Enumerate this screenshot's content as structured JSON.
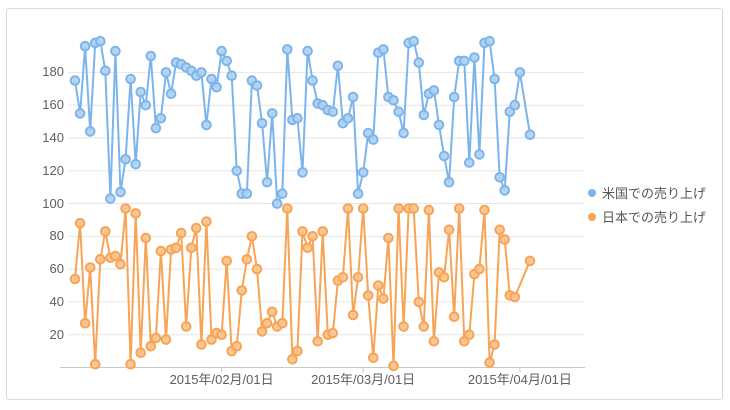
{
  "chart_data": {
    "type": "line",
    "title": "",
    "xlabel": "",
    "ylabel": "",
    "grid": "horizontal-only",
    "legend_position": "right-middle",
    "ylim": [
      0,
      205
    ],
    "y_ticks": [
      20,
      40,
      60,
      80,
      100,
      120,
      140,
      160,
      180
    ],
    "x_tick_labels": [
      "2015年/02月/01日",
      "2015年/03月/01日",
      "2015年/04月/01日"
    ],
    "x_tick_indices": [
      29,
      57,
      88
    ],
    "colors": {
      "grid": "#e6e6e6",
      "axis": "#c8c8c8",
      "tick": "#c8c8c8",
      "axis_text": "#606060",
      "legend_text": "#555555",
      "background": "#ffffff",
      "frame_border": "#d9d9d9"
    },
    "series": [
      {
        "name": "米国での売り上げ",
        "color": "#7cb5ec",
        "marker_fill": "#b3d2f0",
        "values": [
          175,
          155,
          196,
          144,
          198,
          199,
          181,
          103,
          193,
          107,
          127,
          176,
          124,
          168,
          160,
          190,
          146,
          152,
          180,
          167,
          186,
          185,
          183,
          181,
          178,
          180,
          148,
          176,
          171,
          193,
          187,
          178,
          120,
          106,
          106,
          175,
          172,
          149,
          113,
          155,
          100,
          106,
          194,
          151,
          152,
          119,
          193,
          175,
          161,
          160,
          157,
          156,
          184,
          149,
          152,
          165,
          106,
          119,
          143,
          139,
          192,
          194,
          165,
          163,
          156,
          143,
          198,
          199,
          186,
          154,
          167,
          169,
          148,
          129,
          113,
          165,
          187,
          187,
          125,
          189,
          130,
          198,
          199,
          176,
          116,
          108,
          156,
          160,
          180,
          null,
          142
        ]
      },
      {
        "name": "日本での売り上げ",
        "color": "#f7a456",
        "marker_fill": "#fac48e",
        "values": [
          54,
          88,
          27,
          61,
          2,
          66,
          83,
          67,
          68,
          63,
          97,
          2,
          94,
          9,
          79,
          13,
          18,
          71,
          17,
          72,
          73,
          82,
          25,
          73,
          85,
          14,
          89,
          17,
          21,
          20,
          65,
          10,
          13,
          47,
          66,
          80,
          60,
          22,
          27,
          34,
          25,
          27,
          97,
          5,
          10,
          83,
          73,
          80,
          16,
          83,
          20,
          21,
          53,
          55,
          97,
          32,
          55,
          97,
          44,
          6,
          50,
          42,
          79,
          1,
          97,
          25,
          97,
          97,
          40,
          25,
          96,
          16,
          58,
          55,
          84,
          31,
          97,
          16,
          20,
          57,
          60,
          96,
          3,
          14,
          84,
          78,
          44,
          43,
          null,
          null,
          65
        ]
      }
    ]
  }
}
